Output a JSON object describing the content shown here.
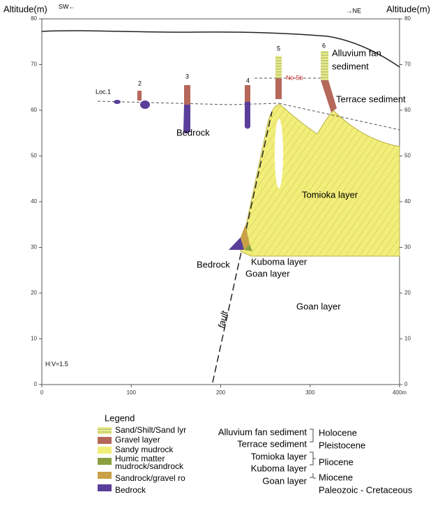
{
  "axes": {
    "left_title": "Altitude(m)",
    "left_dir": "SW←",
    "right_dir": "→NE",
    "right_title": "Altitude(m)",
    "yticks": [
      0,
      10,
      20,
      30,
      40,
      50,
      60,
      70,
      80
    ],
    "xticks": [
      0,
      100,
      200,
      300,
      {
        "value": 400,
        "label": "400m"
      }
    ],
    "scale_note": "H:V=1.5"
  },
  "boreholes": {
    "labels": [
      "Loc.1",
      "2",
      "3",
      "4",
      "5",
      "6"
    ],
    "note": "No-5b"
  },
  "section_labels": {
    "bedrock_upper": "Bedrock",
    "alluvium": [
      "Alluvium fan",
      "sediment"
    ],
    "terrace": "Terrace sediment",
    "tomioka": "Tomioka layer",
    "bedrock_lower": "Bedrock",
    "kuboma": "Kuboma layer",
    "goan_small": "Goan layer",
    "goan": "Goan layer",
    "fault": "fault"
  },
  "legend": {
    "title": "Legend",
    "items": [
      "Sand/Shilt/Sand lyr",
      "Gravel layer",
      "Sandy mudrock",
      [
        "Humic matter",
        "mudrock/sandrock"
      ],
      "Sandrock/gravel ro",
      "Bedrock"
    ]
  },
  "stratigraphy": {
    "layers": [
      "Alluvium fan sediment",
      "Terrace sediment",
      "Tomioka layer",
      "Kuboma layer",
      "Goan layer"
    ],
    "ages": [
      "Holocene",
      "Pleistocene",
      "Pliocene",
      "Miocene",
      "Paleozoic - Cretaceous"
    ]
  }
}
